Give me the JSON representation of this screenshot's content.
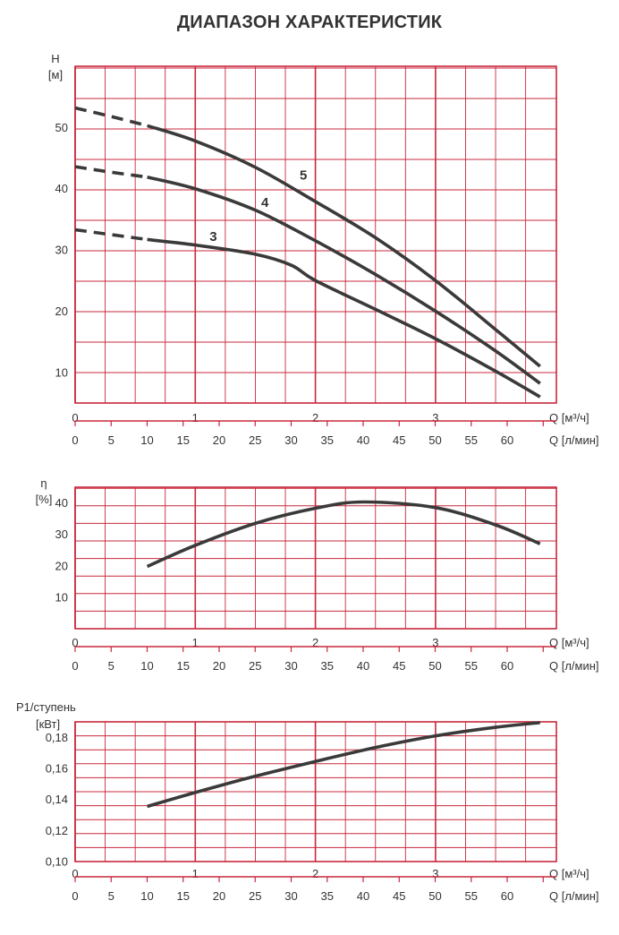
{
  "title": "ДИАПАЗОН ХАРАКТЕРИСТИК",
  "grid_color": "#c8283c",
  "curve_color": "#3a3a3a",
  "q_m3h_label": "Q [м³/ч]",
  "q_lmin_label": "Q [л/мин]",
  "q_m3h_ticks": [
    "0",
    "1",
    "2",
    "3"
  ],
  "q_lmin_ticks": [
    "0",
    "5",
    "10",
    "15",
    "20",
    "25",
    "30",
    "35",
    "40",
    "45",
    "50",
    "55",
    "60"
  ],
  "chart_data": [
    {
      "type": "line",
      "id": "head",
      "ylabel": "H",
      "yunit": "[м]",
      "xlabel": "Q [м³/ч]",
      "xlim": [
        0,
        3.9
      ],
      "ylim": [
        5,
        60
      ],
      "yticks": [
        "10",
        "20",
        "30",
        "40",
        "50"
      ],
      "series": [
        {
          "name": "5",
          "dashed": [
            [
              0,
              53.2
            ],
            [
              0.3,
              51.8
            ],
            [
              0.6,
              50.3
            ]
          ],
          "points": [
            [
              0.6,
              50.3
            ],
            [
              1.0,
              47.8
            ],
            [
              1.5,
              43.5
            ],
            [
              2.0,
              37.9
            ],
            [
              2.5,
              32.0
            ],
            [
              3.0,
              25.0
            ],
            [
              3.5,
              17.0
            ],
            [
              3.87,
              11.0
            ]
          ]
        },
        {
          "name": "4",
          "dashed": [
            [
              0,
              43.6
            ],
            [
              0.3,
              42.7
            ],
            [
              0.6,
              41.9
            ]
          ],
          "points": [
            [
              0.6,
              41.9
            ],
            [
              1.0,
              40.0
            ],
            [
              1.5,
              36.5
            ],
            [
              2.0,
              31.5
            ],
            [
              2.5,
              26.0
            ],
            [
              3.0,
              20.0
            ],
            [
              3.5,
              13.5
            ],
            [
              3.87,
              8.2
            ]
          ]
        },
        {
          "name": "3",
          "dashed": [
            [
              0,
              33.3
            ],
            [
              0.3,
              32.5
            ],
            [
              0.6,
              31.7
            ]
          ],
          "points": [
            [
              0.6,
              31.7
            ],
            [
              1.0,
              30.8
            ],
            [
              1.5,
              29.3
            ],
            [
              1.8,
              27.5
            ],
            [
              2.0,
              25.0
            ],
            [
              2.5,
              20.3
            ],
            [
              3.0,
              15.5
            ],
            [
              3.5,
              10.2
            ],
            [
              3.87,
              6.0
            ]
          ]
        }
      ],
      "curve_labels": [
        {
          "text": "5",
          "x": 1.9,
          "y": 41.5
        },
        {
          "text": "4",
          "x": 1.58,
          "y": 37.0
        },
        {
          "text": "3",
          "x": 1.15,
          "y": 31.5
        }
      ]
    },
    {
      "type": "line",
      "id": "efficiency",
      "ylabel": "η",
      "yunit": "[%]",
      "xlabel": "Q [м³/ч]",
      "xlim": [
        0,
        3.9
      ],
      "ylim": [
        0,
        45
      ],
      "yticks": [
        "10",
        "20",
        "30",
        "40"
      ],
      "series": [
        {
          "name": "η",
          "points": [
            [
              0.6,
              19.8
            ],
            [
              1.0,
              26.5
            ],
            [
              1.5,
              33.5
            ],
            [
              2.0,
              38.3
            ],
            [
              2.4,
              40.3
            ],
            [
              3.0,
              38.5
            ],
            [
              3.5,
              33.0
            ],
            [
              3.87,
              27.0
            ]
          ]
        }
      ]
    },
    {
      "type": "line",
      "id": "power",
      "ylabel": "P1/ступень",
      "yunit": "[кВт]",
      "xlabel": "Q [м³/ч]",
      "xlim": [
        0,
        3.9
      ],
      "ylim": [
        0.1,
        0.19
      ],
      "yticks": [
        "0,10",
        "0,12",
        "0,14",
        "0,16",
        "0,18"
      ],
      "series": [
        {
          "name": "P1",
          "points": [
            [
              0.6,
              0.1355
            ],
            [
              1.0,
              0.1445
            ],
            [
              1.5,
              0.155
            ],
            [
              2.0,
              0.1645
            ],
            [
              2.5,
              0.1735
            ],
            [
              3.0,
              0.181
            ],
            [
              3.5,
              0.1865
            ],
            [
              3.87,
              0.1895
            ]
          ]
        }
      ]
    }
  ]
}
